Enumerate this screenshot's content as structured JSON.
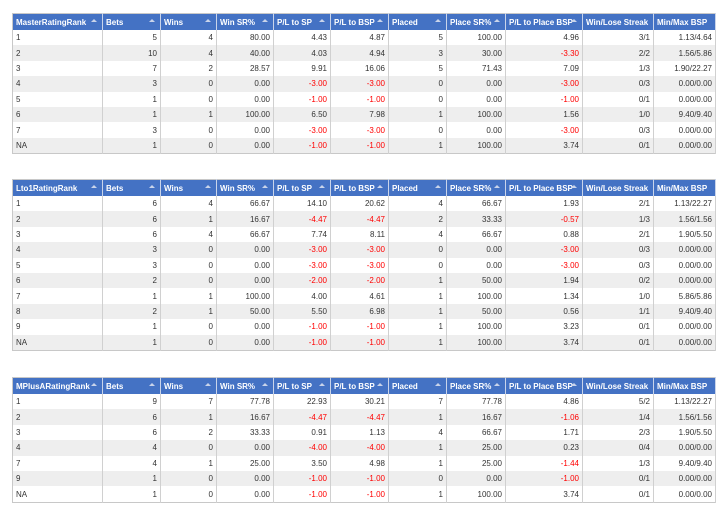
{
  "columns": [
    "Bets",
    "Wins",
    "Win SR%",
    "P/L to SP",
    "P/L to BSP",
    "Placed",
    "Place SR%",
    "P/L to Place BSP",
    "Win/Lose Streak",
    "Min/Max BSP"
  ],
  "sortable": [
    true,
    true,
    true,
    true,
    true,
    true,
    true,
    true,
    true,
    false,
    false
  ],
  "colors": {
    "header_bg": "#4472c4",
    "header_text": "#ffffff",
    "negative": "#ff0000",
    "stripe": "#eeeeee"
  },
  "tables": [
    {
      "rank_header": "MasterRatingRank",
      "rows": [
        [
          "1",
          "5",
          "4",
          "80.00",
          "4.43",
          "4.87",
          "5",
          "100.00",
          "4.96",
          "3/1",
          "1.13/4.64"
        ],
        [
          "2",
          "10",
          "4",
          "40.00",
          "4.03",
          "4.94",
          "3",
          "30.00",
          "-3.30",
          "2/2",
          "1.56/5.86"
        ],
        [
          "3",
          "7",
          "2",
          "28.57",
          "9.91",
          "16.06",
          "5",
          "71.43",
          "7.09",
          "1/3",
          "1.90/22.27"
        ],
        [
          "4",
          "3",
          "0",
          "0.00",
          "-3.00",
          "-3.00",
          "0",
          "0.00",
          "-3.00",
          "0/3",
          "0.00/0.00"
        ],
        [
          "5",
          "1",
          "0",
          "0.00",
          "-1.00",
          "-1.00",
          "0",
          "0.00",
          "-1.00",
          "0/1",
          "0.00/0.00"
        ],
        [
          "6",
          "1",
          "1",
          "100.00",
          "6.50",
          "7.98",
          "1",
          "100.00",
          "1.56",
          "1/0",
          "9.40/9.40"
        ],
        [
          "7",
          "3",
          "0",
          "0.00",
          "-3.00",
          "-3.00",
          "0",
          "0.00",
          "-3.00",
          "0/3",
          "0.00/0.00"
        ],
        [
          "NA",
          "1",
          "0",
          "0.00",
          "-1.00",
          "-1.00",
          "1",
          "100.00",
          "3.74",
          "0/1",
          "0.00/0.00"
        ]
      ]
    },
    {
      "rank_header": "Lto1RatingRank",
      "rows": [
        [
          "1",
          "6",
          "4",
          "66.67",
          "14.10",
          "20.62",
          "4",
          "66.67",
          "1.93",
          "2/1",
          "1.13/22.27"
        ],
        [
          "2",
          "6",
          "1",
          "16.67",
          "-4.47",
          "-4.47",
          "2",
          "33.33",
          "-0.57",
          "1/3",
          "1.56/1.56"
        ],
        [
          "3",
          "6",
          "4",
          "66.67",
          "7.74",
          "8.11",
          "4",
          "66.67",
          "0.88",
          "2/1",
          "1.90/5.50"
        ],
        [
          "4",
          "3",
          "0",
          "0.00",
          "-3.00",
          "-3.00",
          "0",
          "0.00",
          "-3.00",
          "0/3",
          "0.00/0.00"
        ],
        [
          "5",
          "3",
          "0",
          "0.00",
          "-3.00",
          "-3.00",
          "0",
          "0.00",
          "-3.00",
          "0/3",
          "0.00/0.00"
        ],
        [
          "6",
          "2",
          "0",
          "0.00",
          "-2.00",
          "-2.00",
          "1",
          "50.00",
          "1.94",
          "0/2",
          "0.00/0.00"
        ],
        [
          "7",
          "1",
          "1",
          "100.00",
          "4.00",
          "4.61",
          "1",
          "100.00",
          "1.34",
          "1/0",
          "5.86/5.86"
        ],
        [
          "8",
          "2",
          "1",
          "50.00",
          "5.50",
          "6.98",
          "1",
          "50.00",
          "0.56",
          "1/1",
          "9.40/9.40"
        ],
        [
          "9",
          "1",
          "0",
          "0.00",
          "-1.00",
          "-1.00",
          "1",
          "100.00",
          "3.23",
          "0/1",
          "0.00/0.00"
        ],
        [
          "NA",
          "1",
          "0",
          "0.00",
          "-1.00",
          "-1.00",
          "1",
          "100.00",
          "3.74",
          "0/1",
          "0.00/0.00"
        ]
      ]
    },
    {
      "rank_header": "MPlusARatingRank",
      "rows": [
        [
          "1",
          "9",
          "7",
          "77.78",
          "22.93",
          "30.21",
          "7",
          "77.78",
          "4.86",
          "5/2",
          "1.13/22.27"
        ],
        [
          "2",
          "6",
          "1",
          "16.67",
          "-4.47",
          "-4.47",
          "1",
          "16.67",
          "-1.06",
          "1/4",
          "1.56/1.56"
        ],
        [
          "3",
          "6",
          "2",
          "33.33",
          "0.91",
          "1.13",
          "4",
          "66.67",
          "1.71",
          "2/3",
          "1.90/5.50"
        ],
        [
          "4",
          "4",
          "0",
          "0.00",
          "-4.00",
          "-4.00",
          "1",
          "25.00",
          "0.23",
          "0/4",
          "0.00/0.00"
        ],
        [
          "7",
          "4",
          "1",
          "25.00",
          "3.50",
          "4.98",
          "1",
          "25.00",
          "-1.44",
          "1/3",
          "9.40/9.40"
        ],
        [
          "9",
          "1",
          "0",
          "0.00",
          "-1.00",
          "-1.00",
          "0",
          "0.00",
          "-1.00",
          "0/1",
          "0.00/0.00"
        ],
        [
          "NA",
          "1",
          "0",
          "0.00",
          "-1.00",
          "-1.00",
          "1",
          "100.00",
          "3.74",
          "0/1",
          "0.00/0.00"
        ]
      ]
    }
  ]
}
